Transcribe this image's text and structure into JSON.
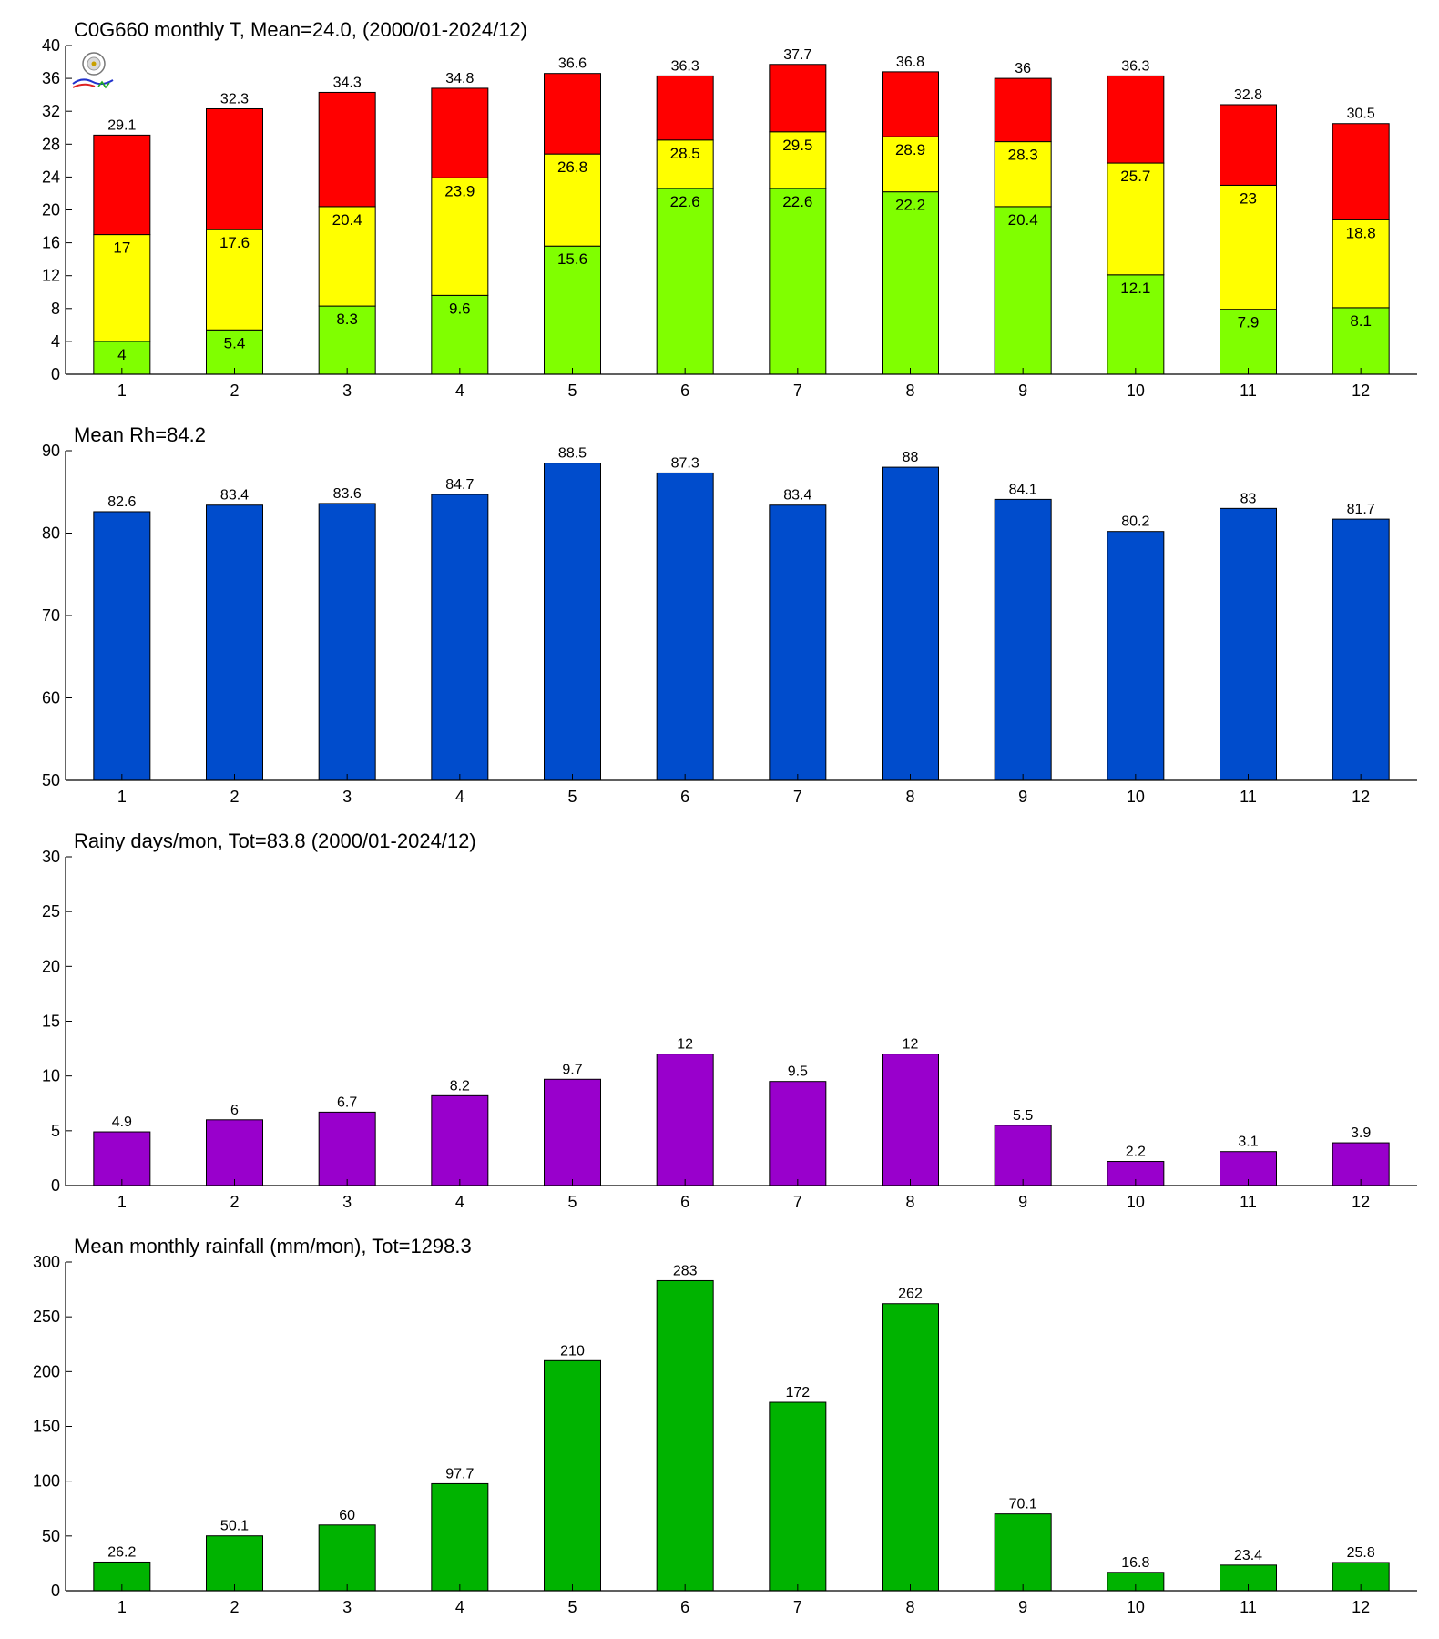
{
  "figure": {
    "background": "#ffffff"
  },
  "chart_data": [
    {
      "type": "bar",
      "stacked": true,
      "title": "C0G660 monthly T, Mean=24.0, (2000/01-2024/12)",
      "xlabel": "",
      "ylabel": "",
      "categories": [
        "1",
        "2",
        "3",
        "4",
        "5",
        "6",
        "7",
        "8",
        "9",
        "10",
        "11",
        "12"
      ],
      "ylim": [
        0,
        40
      ],
      "yticks": [
        0,
        4,
        8,
        12,
        16,
        20,
        24,
        28,
        32,
        36,
        40
      ],
      "logo": "station-logo",
      "levels": [
        {
          "role": "min",
          "color": "#80ff00",
          "values": [
            4,
            5.4,
            8.3,
            9.6,
            15.6,
            22.6,
            22.6,
            22.2,
            20.4,
            12.1,
            7.9,
            8.1
          ]
        },
        {
          "role": "mean",
          "color": "#ffff00",
          "values": [
            17,
            17.6,
            20.4,
            23.9,
            26.8,
            28.5,
            29.5,
            28.9,
            28.3,
            25.7,
            23,
            18.8
          ]
        },
        {
          "role": "max",
          "color": "#ff0000",
          "values": [
            29.1,
            32.3,
            34.3,
            34.8,
            36.6,
            36.3,
            37.7,
            36.8,
            36,
            36.3,
            32.8,
            30.5
          ]
        }
      ]
    },
    {
      "type": "bar",
      "title": "Mean Rh=84.2",
      "xlabel": "",
      "ylabel": "",
      "categories": [
        "1",
        "2",
        "3",
        "4",
        "5",
        "6",
        "7",
        "8",
        "9",
        "10",
        "11",
        "12"
      ],
      "ylim": [
        50,
        90
      ],
      "yticks": [
        50,
        60,
        70,
        80,
        90
      ],
      "color": "#004ccc",
      "values": [
        82.6,
        83.4,
        83.6,
        84.7,
        88.5,
        87.3,
        83.4,
        88,
        84.1,
        80.2,
        83,
        81.7
      ]
    },
    {
      "type": "bar",
      "title": "Rainy days/mon, Tot=83.8 (2000/01-2024/12)",
      "xlabel": "",
      "ylabel": "",
      "categories": [
        "1",
        "2",
        "3",
        "4",
        "5",
        "6",
        "7",
        "8",
        "9",
        "10",
        "11",
        "12"
      ],
      "ylim": [
        0,
        30
      ],
      "yticks": [
        0,
        5,
        10,
        15,
        20,
        25,
        30
      ],
      "color": "#9900cc",
      "values": [
        4.9,
        6,
        6.7,
        8.2,
        9.7,
        12,
        9.5,
        12,
        5.5,
        2.2,
        3.1,
        3.9
      ]
    },
    {
      "type": "bar",
      "title": "Mean monthly rainfall (mm/mon), Tot=1298.3",
      "xlabel": "",
      "ylabel": "",
      "categories": [
        "1",
        "2",
        "3",
        "4",
        "5",
        "6",
        "7",
        "8",
        "9",
        "10",
        "11",
        "12"
      ],
      "ylim": [
        0,
        300
      ],
      "yticks": [
        0,
        50,
        100,
        150,
        200,
        250,
        300
      ],
      "color": "#00b300",
      "values": [
        26.2,
        50.1,
        60,
        97.7,
        210,
        283,
        172,
        262,
        70.1,
        16.8,
        23.4,
        25.8
      ]
    }
  ]
}
